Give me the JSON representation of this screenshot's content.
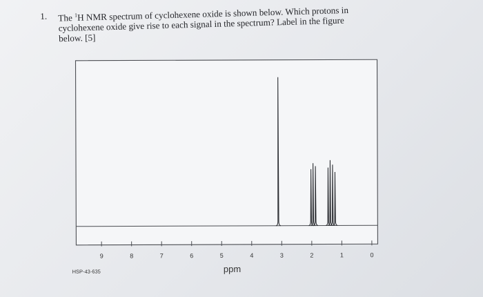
{
  "question": {
    "number": "1.",
    "line1_pre": "The ",
    "line1_sup": "1",
    "line1_post": "H NMR spectrum of cyclohexene oxide is shown below. Which protons in",
    "line2": "cyclohexene oxide give rise to each signal in the spectrum? Label in the figure",
    "line3": "below. [5]"
  },
  "chart_data": {
    "type": "line",
    "xlabel": "ppm",
    "ylabel": "",
    "xlim": [
      9.2,
      -0.15
    ],
    "reversed_x": true,
    "grid": false,
    "tick_labels": [
      "9",
      "8",
      "7",
      "6",
      "5",
      "4",
      "3",
      "2",
      "1",
      "0"
    ],
    "ticks": [
      9,
      8,
      7,
      6,
      5,
      4,
      3,
      2,
      1,
      0
    ],
    "footer_code": "HSP-43-635",
    "peaks": [
      {
        "ppm": 3.11,
        "height": 1.0
      },
      {
        "ppm": 2.02,
        "height": 0.38
      },
      {
        "ppm": 1.95,
        "height": 0.42
      },
      {
        "ppm": 1.87,
        "height": 0.4
      },
      {
        "ppm": 1.45,
        "height": 0.39
      },
      {
        "ppm": 1.38,
        "height": 0.44
      },
      {
        "ppm": 1.3,
        "height": 0.41
      },
      {
        "ppm": 1.22,
        "height": 0.36
      }
    ]
  }
}
